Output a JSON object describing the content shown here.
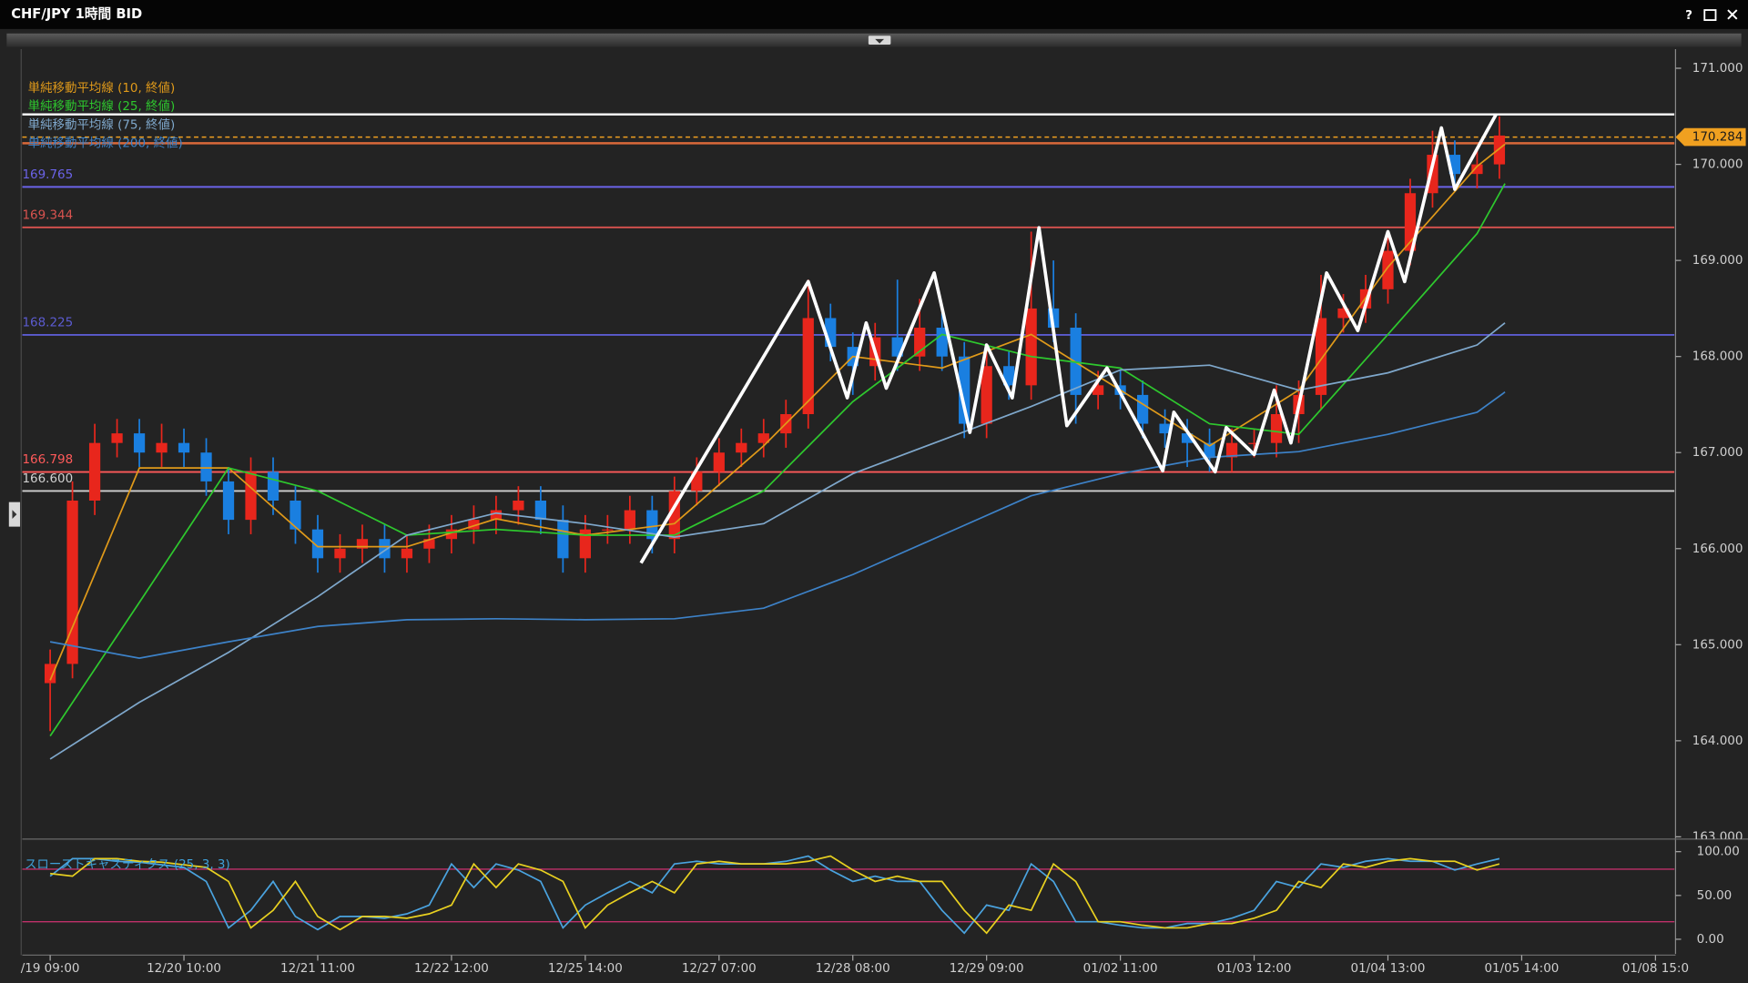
{
  "chart_data": [
    {
      "type": "candlestick",
      "title": "CHF/JPY 1時間 BID",
      "window_buttons": [
        "?"
      ],
      "x": [
        0,
        4,
        8,
        12,
        16,
        20,
        24,
        28,
        32,
        36,
        40,
        44,
        48,
        52,
        56,
        60,
        64,
        68,
        72,
        76,
        80,
        84,
        88,
        92,
        96,
        100,
        104,
        108,
        112,
        116,
        120,
        124,
        128,
        132,
        136,
        140,
        144,
        148,
        152,
        156,
        160,
        164,
        168,
        172,
        176,
        180,
        184,
        188,
        192,
        196,
        200,
        204,
        208,
        212,
        216,
        220,
        224,
        228,
        232,
        236,
        240,
        244,
        248,
        252,
        256,
        260
      ],
      "open": [
        164.6,
        164.8,
        166.5,
        167.1,
        167.2,
        167.0,
        167.1,
        167.0,
        166.7,
        166.3,
        166.8,
        166.5,
        166.2,
        165.9,
        166.0,
        166.1,
        165.9,
        166.0,
        166.1,
        166.2,
        166.3,
        166.4,
        166.5,
        166.3,
        165.9,
        166.2,
        166.2,
        166.4,
        166.1,
        166.6,
        166.8,
        167.0,
        167.1,
        167.2,
        167.4,
        168.4,
        168.1,
        167.9,
        168.2,
        168.0,
        168.3,
        168.0,
        167.3,
        167.9,
        167.7,
        168.5,
        168.3,
        167.6,
        167.7,
        167.6,
        167.3,
        167.2,
        167.1,
        166.95,
        167.1,
        167.1,
        167.4,
        167.6,
        168.4,
        168.5,
        168.7,
        169.1,
        169.7,
        170.1,
        169.9,
        170.0
      ],
      "high": [
        164.95,
        166.7,
        167.3,
        167.35,
        167.35,
        167.3,
        167.25,
        167.15,
        166.85,
        166.95,
        166.95,
        166.65,
        166.35,
        166.15,
        166.25,
        166.25,
        166.15,
        166.25,
        166.35,
        166.45,
        166.55,
        166.65,
        166.65,
        166.45,
        166.35,
        166.35,
        166.55,
        166.55,
        166.75,
        166.95,
        167.15,
        167.25,
        167.35,
        167.55,
        168.8,
        168.55,
        168.25,
        168.35,
        168.8,
        168.6,
        168.45,
        168.15,
        168.05,
        168.05,
        169.3,
        169.0,
        168.45,
        167.85,
        167.85,
        167.75,
        167.45,
        167.35,
        167.25,
        167.25,
        167.25,
        167.7,
        167.75,
        168.85,
        168.65,
        168.85,
        169.3,
        169.85,
        170.35,
        170.25,
        170.15,
        170.5
      ],
      "low": [
        164.1,
        164.65,
        166.35,
        166.95,
        166.85,
        166.85,
        166.85,
        166.55,
        166.15,
        166.15,
        166.35,
        166.05,
        165.75,
        165.75,
        165.85,
        165.75,
        165.75,
        165.85,
        165.95,
        166.05,
        166.15,
        166.25,
        166.15,
        165.75,
        165.75,
        166.05,
        166.05,
        165.95,
        165.95,
        166.45,
        166.65,
        166.85,
        166.95,
        167.05,
        167.25,
        167.95,
        167.6,
        167.75,
        167.85,
        167.85,
        167.85,
        167.15,
        167.15,
        167.55,
        167.55,
        168.15,
        167.3,
        167.45,
        167.45,
        167.15,
        167.05,
        166.85,
        166.8,
        166.8,
        166.95,
        166.95,
        167.1,
        167.45,
        168.25,
        168.35,
        168.55,
        168.95,
        169.55,
        169.75,
        169.75,
        169.85
      ],
      "close": [
        164.8,
        166.5,
        167.1,
        167.2,
        167.0,
        167.1,
        167.0,
        166.7,
        166.3,
        166.8,
        166.5,
        166.2,
        165.9,
        166.0,
        166.1,
        165.9,
        166.0,
        166.1,
        166.2,
        166.3,
        166.4,
        166.5,
        166.3,
        165.9,
        166.2,
        166.2,
        166.4,
        166.1,
        166.6,
        166.8,
        167.0,
        167.1,
        167.2,
        167.4,
        168.4,
        168.1,
        167.9,
        168.2,
        168.0,
        168.3,
        168.0,
        167.3,
        167.9,
        167.7,
        168.5,
        168.3,
        167.6,
        167.7,
        167.6,
        167.3,
        167.2,
        167.1,
        166.95,
        167.1,
        167.1,
        167.4,
        167.6,
        168.4,
        168.5,
        168.7,
        169.1,
        169.7,
        170.1,
        169.9,
        170.0,
        170.3
      ],
      "up_color": "#e8261c",
      "down_color": "#1a7fe0",
      "xlim": [
        -5,
        291
      ],
      "ylim": [
        163.0,
        171.2
      ],
      "yticks": [
        {
          "value": 171,
          "label": "171.000"
        },
        {
          "value": 170,
          "label": "170.000"
        },
        {
          "value": 169,
          "label": "169.000"
        },
        {
          "value": 168,
          "label": "168.000"
        },
        {
          "value": 167,
          "label": "167.000"
        },
        {
          "value": 166,
          "label": "166.000"
        },
        {
          "value": 165,
          "label": "165.000"
        },
        {
          "value": 164,
          "label": "164.000"
        },
        {
          "value": 163,
          "label": "163.000"
        }
      ],
      "series": [
        {
          "name": "単純移動平均線 (10, 終値)",
          "color": "#e09a1a",
          "x": [
            0,
            16,
            32,
            48,
            64,
            80,
            96,
            112,
            128,
            144,
            160,
            176,
            192,
            208,
            224,
            240,
            256,
            261
          ],
          "values": [
            164.63,
            166.84,
            166.84,
            166.02,
            166.02,
            166.31,
            166.14,
            166.26,
            167.07,
            168.0,
            167.88,
            168.23,
            167.65,
            167.07,
            167.65,
            168.93,
            169.98,
            170.21
          ]
        },
        {
          "name": "単純移動平均線 (25, 終値)",
          "color": "#2ec82e",
          "x": [
            0,
            16,
            32,
            48,
            64,
            80,
            96,
            112,
            128,
            144,
            160,
            176,
            192,
            208,
            224,
            240,
            256,
            261
          ],
          "values": [
            164.05,
            165.44,
            166.84,
            166.6,
            166.14,
            166.2,
            166.14,
            166.14,
            166.6,
            167.53,
            168.23,
            168.0,
            167.88,
            167.3,
            167.19,
            168.23,
            169.28,
            169.8
          ]
        },
        {
          "name": "単純移動平均線 (75, 終値)",
          "color": "#7fa8cc",
          "x": [
            0,
            16,
            32,
            48,
            64,
            80,
            96,
            112,
            128,
            144,
            160,
            176,
            192,
            208,
            224,
            240,
            256,
            261
          ],
          "values": [
            163.81,
            164.4,
            164.92,
            165.5,
            166.14,
            166.37,
            166.26,
            166.12,
            166.26,
            166.78,
            167.13,
            167.48,
            167.86,
            167.91,
            167.65,
            167.83,
            168.12,
            168.35
          ]
        },
        {
          "name": "単純移動平均線 (200, 終値)",
          "color": "#3d82c8",
          "x": [
            0,
            16,
            32,
            48,
            64,
            80,
            96,
            112,
            128,
            144,
            160,
            176,
            192,
            208,
            224,
            240,
            256,
            261
          ],
          "values": [
            165.03,
            164.86,
            165.03,
            165.19,
            165.26,
            165.27,
            165.26,
            165.27,
            165.38,
            165.73,
            166.14,
            166.55,
            166.78,
            166.95,
            167.01,
            167.19,
            167.42,
            167.63
          ]
        }
      ],
      "lines": [
        {
          "value": 170.52,
          "color": "#ffffff"
        },
        {
          "value": 170.22,
          "color": "#d9683a"
        }
      ],
      "levels": [
        {
          "value": 169.765,
          "label": "169.765",
          "color": "#6b63e8"
        },
        {
          "value": 169.344,
          "label": "169.344",
          "color": "#d9534f"
        },
        {
          "value": 168.225,
          "label": "168.225",
          "color": "#5b5bd0"
        },
        {
          "value": 166.798,
          "label": "166.798",
          "color": "#ff5a5a"
        },
        {
          "value": 166.6,
          "label": "166.600",
          "color": "#d0d0d0"
        }
      ],
      "last_price": {
        "value": 170.284,
        "color": "#f0a020"
      },
      "zigzag": {
        "color": "#ffffff",
        "x": [
          106,
          136,
          143,
          146.4,
          150,
          158.6,
          165,
          168,
          172.6,
          177.4,
          182.4,
          189.6,
          199.6,
          201.6,
          209,
          211,
          216,
          219.6,
          222.6,
          229,
          234.6,
          240,
          243,
          249.6,
          252,
          259.4
        ],
        "values": [
          165.85,
          168.78,
          167.57,
          168.35,
          167.67,
          168.87,
          167.21,
          168.12,
          167.57,
          169.34,
          167.28,
          167.88,
          166.81,
          167.42,
          166.8,
          167.26,
          166.98,
          167.65,
          167.1,
          168.87,
          168.27,
          169.3,
          168.78,
          170.38,
          169.74,
          170.52
        ]
      }
    },
    {
      "type": "line",
      "title": "スローストキャスティクス (25, 3, 3)",
      "title_color": "#3fa0d8",
      "x": [
        0,
        4,
        8,
        12,
        16,
        20,
        24,
        28,
        32,
        36,
        40,
        44,
        48,
        52,
        56,
        60,
        64,
        68,
        72,
        76,
        80,
        84,
        88,
        92,
        96,
        100,
        104,
        108,
        112,
        116,
        120,
        124,
        128,
        132,
        136,
        140,
        144,
        148,
        152,
        156,
        160,
        164,
        168,
        172,
        176,
        180,
        184,
        188,
        192,
        196,
        200,
        204,
        208,
        212,
        216,
        220,
        224,
        228,
        232,
        236,
        240,
        244,
        248,
        252,
        256,
        260
      ],
      "series": [
        {
          "color": "#4aa3df",
          "values": [
            72,
            92,
            92,
            89,
            88,
            85,
            82,
            66,
            13,
            33,
            66,
            26,
            11,
            26,
            26,
            24,
            29,
            39,
            86,
            59,
            86,
            79,
            66,
            13,
            39,
            53,
            66,
            53,
            86,
            89,
            86,
            86,
            86,
            89,
            95,
            79,
            66,
            72,
            66,
            66,
            33,
            7,
            39,
            33,
            86,
            66,
            20,
            20,
            16,
            13,
            13,
            18,
            18,
            24,
            33,
            66,
            59,
            86,
            82,
            89,
            92,
            89,
            89,
            79,
            86,
            92
          ]
        },
        {
          "color": "#e8d020",
          "values": [
            75,
            72,
            92,
            92,
            89,
            88,
            85,
            82,
            66,
            13,
            33,
            66,
            26,
            11,
            26,
            26,
            24,
            29,
            39,
            86,
            59,
            86,
            79,
            66,
            13,
            39,
            53,
            66,
            53,
            86,
            89,
            86,
            86,
            86,
            89,
            95,
            79,
            66,
            72,
            66,
            66,
            33,
            7,
            39,
            33,
            86,
            66,
            20,
            20,
            16,
            13,
            13,
            18,
            18,
            24,
            33,
            66,
            59,
            86,
            82,
            89,
            92,
            89,
            89,
            79,
            86
          ]
        }
      ],
      "bands": [
        {
          "value": 80,
          "color": "#c0306a"
        },
        {
          "value": 20,
          "color": "#c0306a"
        }
      ],
      "xlim": [
        -5,
        291
      ],
      "ylim": [
        -13,
        108
      ],
      "yticks": [
        {
          "value": 100,
          "label": "100.00"
        },
        {
          "value": 50,
          "label": "50.00"
        },
        {
          "value": 0,
          "label": "0.00"
        }
      ],
      "xticks": [
        {
          "value": 0,
          "label": "/19 09:00"
        },
        {
          "value": 24,
          "label": "12/20 10:00"
        },
        {
          "value": 48,
          "label": "12/21 11:00"
        },
        {
          "value": 72,
          "label": "12/22 12:00"
        },
        {
          "value": 96,
          "label": "12/25 14:00"
        },
        {
          "value": 120,
          "label": "12/27 07:00"
        },
        {
          "value": 144,
          "label": "12/28 08:00"
        },
        {
          "value": 168,
          "label": "12/29 09:00"
        },
        {
          "value": 192,
          "label": "01/02 11:00"
        },
        {
          "value": 216,
          "label": "01/03 12:00"
        },
        {
          "value": 240,
          "label": "01/04 13:00"
        },
        {
          "value": 264,
          "label": "01/05 14:00"
        },
        {
          "value": 288,
          "label": "01/08 15:0"
        }
      ]
    }
  ]
}
